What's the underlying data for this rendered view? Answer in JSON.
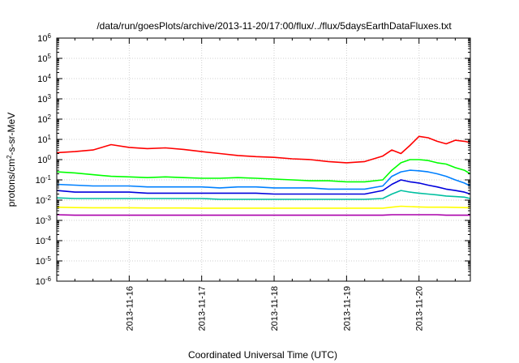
{
  "chart_data": {
    "type": "line",
    "title": "/data/run/goesPlots/archive/2013-11-20/17:00/flux/../flux/5daysEarthDataFluxes.txt",
    "xlabel": "Coordinated Universal Time (UTC)",
    "ylabel": {
      "base": "protons/cm",
      "sup": "2",
      "rest": "-s-sr-MeV"
    },
    "y_scale": "log",
    "ylim": [
      1e-06,
      1000000
    ],
    "xlim": [
      "2013-11-15 00:00",
      "2013-11-20 17:00"
    ],
    "y_ticks": [
      {
        "value": 1e-06,
        "base": "10",
        "exp": "-6"
      },
      {
        "value": 1e-05,
        "base": "10",
        "exp": "-5"
      },
      {
        "value": 0.0001,
        "base": "10",
        "exp": "-4"
      },
      {
        "value": 0.001,
        "base": "10",
        "exp": "-3"
      },
      {
        "value": 0.01,
        "base": "10",
        "exp": "-2"
      },
      {
        "value": 0.1,
        "base": "10",
        "exp": "-1"
      },
      {
        "value": 1,
        "base": "10",
        "exp": "0"
      },
      {
        "value": 10,
        "base": "10",
        "exp": "1"
      },
      {
        "value": 100,
        "base": "10",
        "exp": "2"
      },
      {
        "value": 1000,
        "base": "10",
        "exp": "3"
      },
      {
        "value": 10000,
        "base": "10",
        "exp": "4"
      },
      {
        "value": 100000,
        "base": "10",
        "exp": "5"
      },
      {
        "value": 1000000,
        "base": "10",
        "exp": "6"
      }
    ],
    "x_ticks": [
      {
        "value": "2013-11-16 00:00",
        "label": "2013-11-16"
      },
      {
        "value": "2013-11-17 00:00",
        "label": "2013-11-17"
      },
      {
        "value": "2013-11-18 00:00",
        "label": "2013-11-18"
      },
      {
        "value": "2013-11-19 00:00",
        "label": "2013-11-19"
      },
      {
        "value": "2013-11-20 00:00",
        "label": "2013-11-20"
      }
    ],
    "grid": true,
    "legend": "none",
    "x": [
      "2013-11-15 00:00",
      "2013-11-15 06:00",
      "2013-11-15 12:00",
      "2013-11-15 18:00",
      "2013-11-16 00:00",
      "2013-11-16 06:00",
      "2013-11-16 12:00",
      "2013-11-16 18:00",
      "2013-11-17 00:00",
      "2013-11-17 06:00",
      "2013-11-17 12:00",
      "2013-11-17 18:00",
      "2013-11-18 00:00",
      "2013-11-18 06:00",
      "2013-11-18 12:00",
      "2013-11-18 18:00",
      "2013-11-19 00:00",
      "2013-11-19 06:00",
      "2013-11-19 12:00",
      "2013-11-19 15:00",
      "2013-11-19 18:00",
      "2013-11-19 21:00",
      "2013-11-20 00:00",
      "2013-11-20 03:00",
      "2013-11-20 06:00",
      "2013-11-20 09:00",
      "2013-11-20 12:00",
      "2013-11-20 15:00",
      "2013-11-20 17:00"
    ],
    "series": [
      {
        "color": "#ff0000",
        "values": [
          2.2,
          2.5,
          3.0,
          5.5,
          4.0,
          3.5,
          3.8,
          3.2,
          2.5,
          2.0,
          1.6,
          1.4,
          1.3,
          1.1,
          1.0,
          0.8,
          0.7,
          0.8,
          1.5,
          3.0,
          2.0,
          5.0,
          14,
          12,
          8,
          6,
          9,
          8,
          7
        ]
      },
      {
        "color": "#00ff00",
        "values": [
          0.25,
          0.22,
          0.18,
          0.15,
          0.14,
          0.13,
          0.14,
          0.13,
          0.12,
          0.12,
          0.13,
          0.12,
          0.11,
          0.1,
          0.09,
          0.09,
          0.08,
          0.08,
          0.1,
          0.3,
          0.7,
          1.0,
          1.0,
          0.9,
          0.7,
          0.6,
          0.4,
          0.3,
          0.2
        ]
      },
      {
        "color": "#0080ff",
        "values": [
          0.06,
          0.055,
          0.05,
          0.05,
          0.05,
          0.045,
          0.045,
          0.045,
          0.045,
          0.04,
          0.045,
          0.045,
          0.04,
          0.04,
          0.04,
          0.035,
          0.035,
          0.035,
          0.05,
          0.15,
          0.25,
          0.3,
          0.28,
          0.25,
          0.2,
          0.15,
          0.1,
          0.07,
          0.05
        ]
      },
      {
        "color": "#0000dd",
        "values": [
          0.03,
          0.025,
          0.025,
          0.025,
          0.025,
          0.022,
          0.022,
          0.022,
          0.022,
          0.022,
          0.022,
          0.022,
          0.02,
          0.02,
          0.02,
          0.02,
          0.02,
          0.02,
          0.03,
          0.06,
          0.1,
          0.08,
          0.07,
          0.055,
          0.045,
          0.035,
          0.03,
          0.025,
          0.02
        ]
      },
      {
        "color": "#00c0a0",
        "values": [
          0.013,
          0.012,
          0.012,
          0.012,
          0.012,
          0.012,
          0.012,
          0.012,
          0.012,
          0.011,
          0.011,
          0.011,
          0.011,
          0.011,
          0.011,
          0.011,
          0.011,
          0.011,
          0.012,
          0.02,
          0.03,
          0.025,
          0.022,
          0.02,
          0.018,
          0.016,
          0.015,
          0.014,
          0.012
        ]
      },
      {
        "color": "#ffff00",
        "values": [
          0.0045,
          0.0043,
          0.0042,
          0.0042,
          0.0042,
          0.0041,
          0.0041,
          0.0041,
          0.004,
          0.004,
          0.004,
          0.004,
          0.004,
          0.004,
          0.004,
          0.004,
          0.004,
          0.004,
          0.004,
          0.0045,
          0.005,
          0.0048,
          0.0046,
          0.0045,
          0.0045,
          0.0045,
          0.0044,
          0.0043,
          0.0042
        ]
      },
      {
        "color": "#aa00aa",
        "values": [
          0.0019,
          0.0018,
          0.0018,
          0.0018,
          0.0018,
          0.0018,
          0.0018,
          0.0018,
          0.0018,
          0.0018,
          0.0018,
          0.0018,
          0.0018,
          0.0018,
          0.0018,
          0.0018,
          0.0018,
          0.0018,
          0.0018,
          0.0019,
          0.0019,
          0.0019,
          0.0019,
          0.0019,
          0.0019,
          0.0018,
          0.0018,
          0.0018,
          0.0018
        ]
      }
    ]
  }
}
